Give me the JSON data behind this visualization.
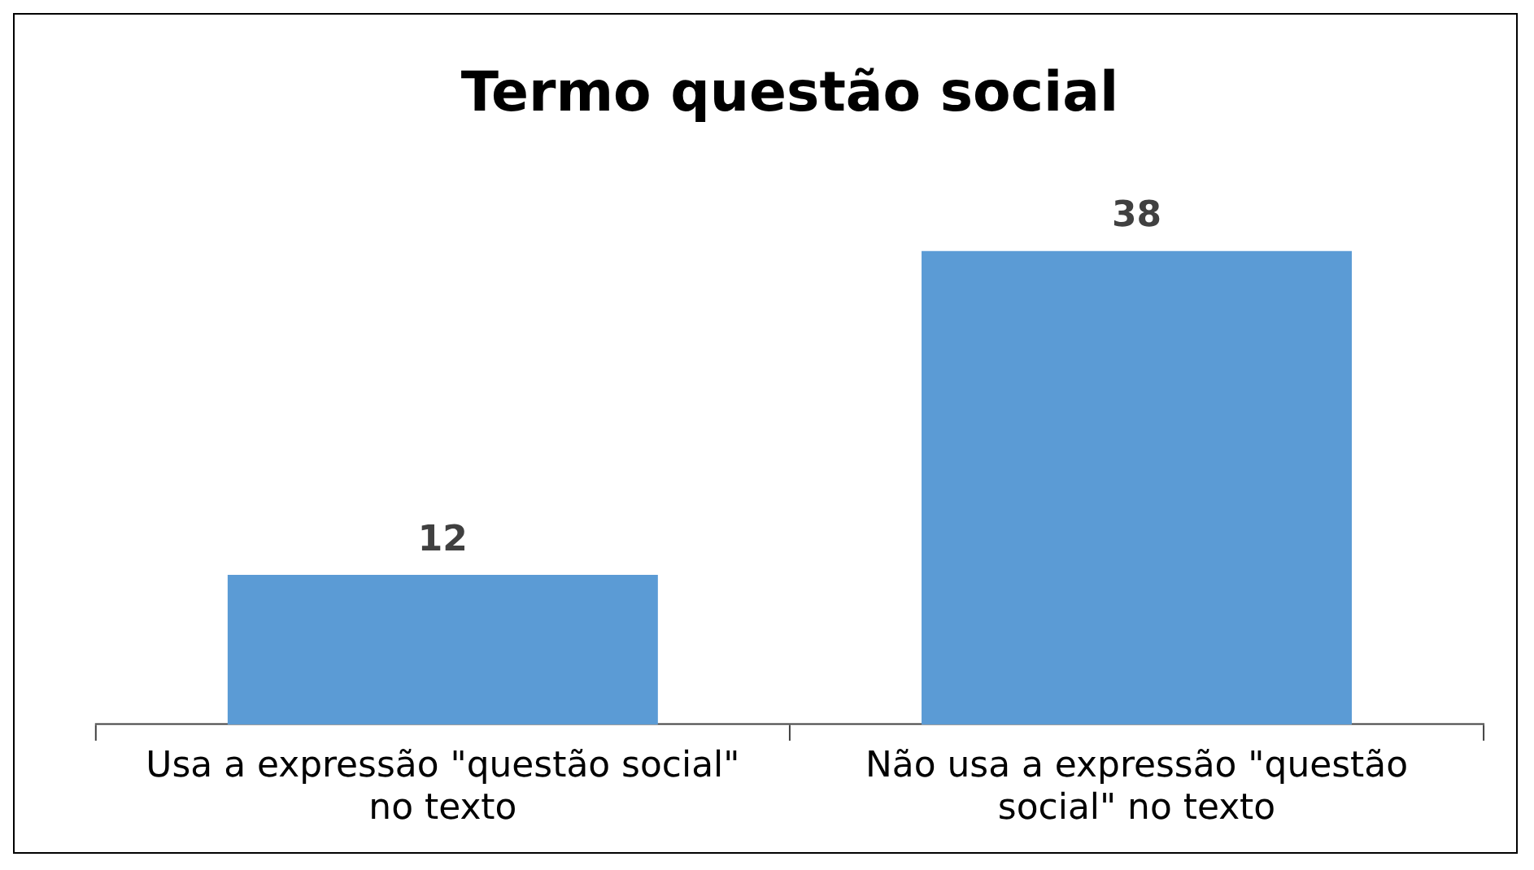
{
  "chart_data": {
    "type": "bar",
    "title": "Termo questão social",
    "categories": [
      "Usa a expressão \"questão social\" no texto",
      "Não usa a expressão \"questão social\" no texto"
    ],
    "values": [
      12,
      38
    ],
    "color": "#5b9bd5",
    "data_labels": true,
    "grid": false,
    "legend": false
  }
}
